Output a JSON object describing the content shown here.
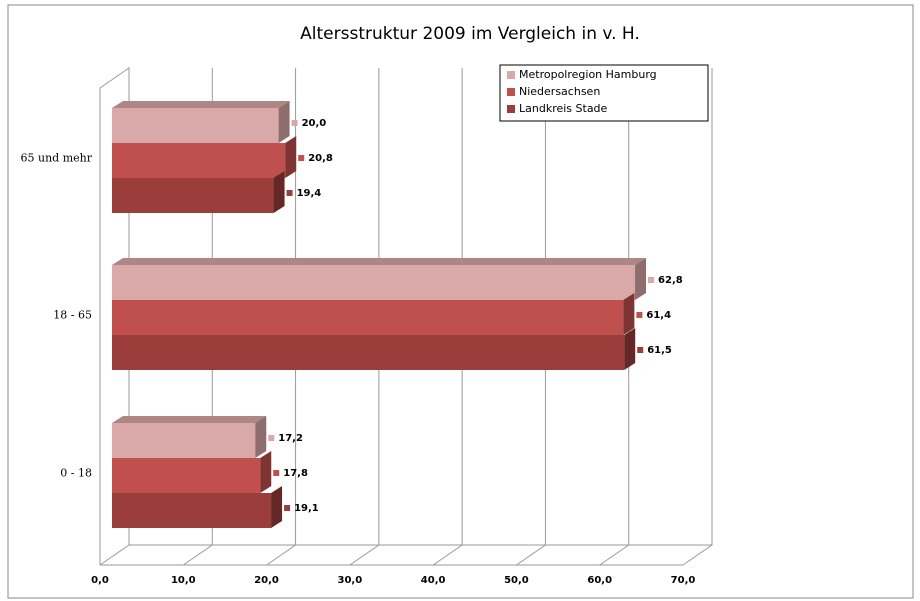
{
  "chart_data": {
    "type": "bar3d_horizontal",
    "title": "Altersstruktur 2009 im Vergleich in v. H.",
    "categories": [
      "0 - 18",
      "18 - 65",
      "65 und mehr"
    ],
    "series": [
      {
        "name": "Metropolregion Hamburg",
        "color": "#d9a8a8",
        "values": [
          17.2,
          62.8,
          20.0
        ],
        "value_labels": [
          "17,2",
          "62,8",
          "20,0"
        ]
      },
      {
        "name": "Niedersachsen",
        "color": "#c0504d",
        "values": [
          17.8,
          61.4,
          20.8
        ],
        "value_labels": [
          "17,8",
          "61,4",
          "20,8"
        ]
      },
      {
        "name": "Landkreis Stade",
        "color": "#9b3d3b",
        "values": [
          19.1,
          61.5,
          19.4
        ],
        "value_labels": [
          "19,1",
          "61,5",
          "19,4"
        ]
      }
    ],
    "xlim": [
      0,
      70
    ],
    "xticks": [
      {
        "value": 0,
        "label": "0,0"
      },
      {
        "value": 10,
        "label": "10,0"
      },
      {
        "value": 20,
        "label": "20,0"
      },
      {
        "value": 30,
        "label": "30,0"
      },
      {
        "value": 40,
        "label": "40,0"
      },
      {
        "value": 50,
        "label": "50,0"
      },
      {
        "value": 60,
        "label": "60,0"
      },
      {
        "value": 70,
        "label": "70,0"
      }
    ],
    "grid": true,
    "legend": "top-right"
  }
}
